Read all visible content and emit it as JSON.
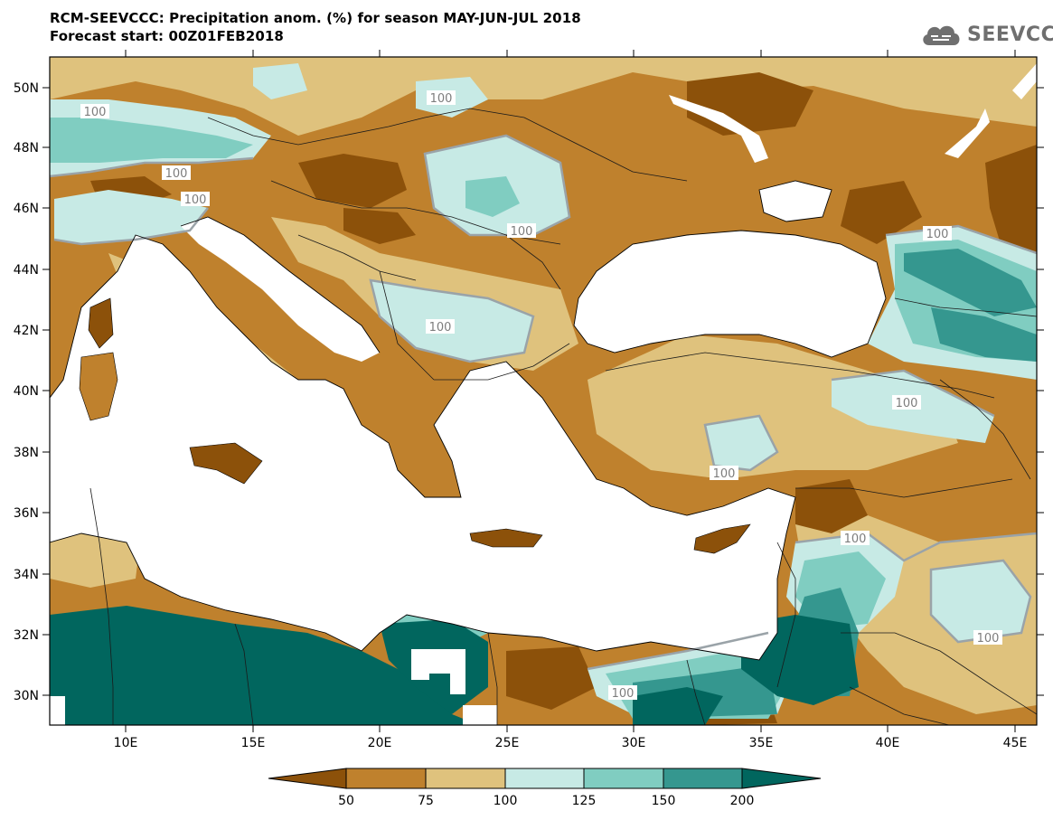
{
  "header": {
    "title": "RCM-SEEVCCC: Precipitation anom. (%) for season MAY-JUN-JUL 2018",
    "subtitle": "Forecast start: 00Z01FEB2018"
  },
  "logo": {
    "text": "SEEVCCC",
    "icon": "cloud-icon"
  },
  "map": {
    "lat_labels": [
      "50N",
      "48N",
      "46N",
      "44N",
      "42N",
      "40N",
      "38N",
      "36N",
      "34N",
      "32N",
      "30N"
    ],
    "lon_labels": [
      "10E",
      "15E",
      "20E",
      "25E",
      "30E",
      "35E",
      "40E",
      "45E"
    ],
    "contour_labels": [
      "100",
      "100",
      "100",
      "100",
      "100",
      "100",
      "100",
      "100",
      "100",
      "100",
      "100",
      "100"
    ],
    "colors": {
      "very_dry": "#8c510a",
      "dry": "#bf812d",
      "slightly_dry": "#dfc27d",
      "slightly_wet": "#c7eae5",
      "wet": "#80cdc1",
      "very_wet": "#35978f",
      "extreme_wet": "#01665e",
      "water": "#ffffff"
    }
  },
  "colorbar": {
    "ticks": [
      "50",
      "75",
      "100",
      "125",
      "150",
      "200"
    ],
    "colors": [
      "#8c510a",
      "#bf812d",
      "#dfc27d",
      "#c7eae5",
      "#80cdc1",
      "#35978f",
      "#01665e"
    ]
  }
}
